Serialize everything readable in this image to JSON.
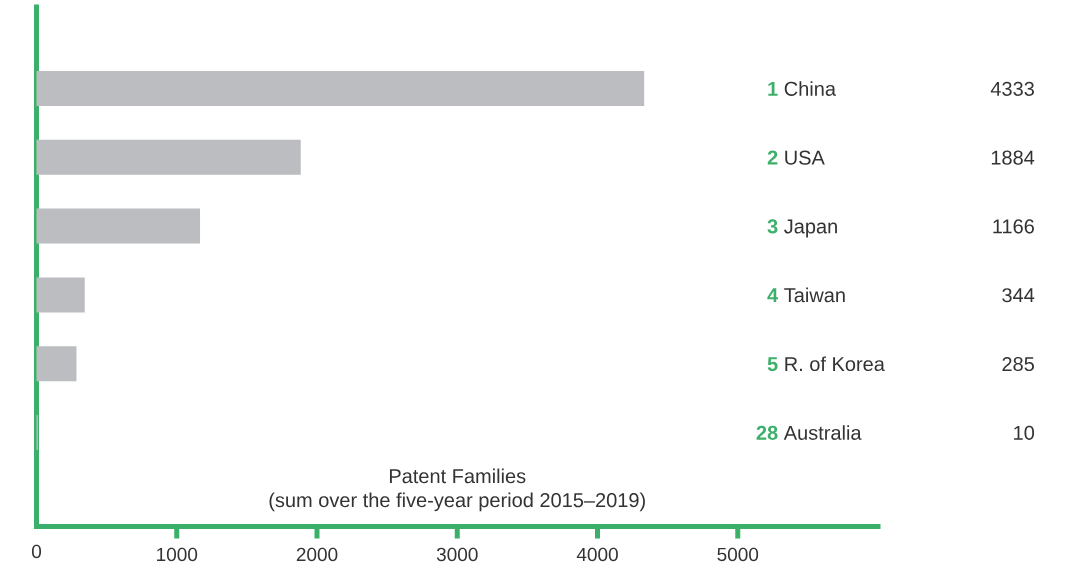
{
  "chart_data": {
    "type": "bar",
    "orientation": "horizontal",
    "categories": [
      "**1** China",
      "**2** USA",
      "**3** Japan",
      "**4** Taiwan",
      "**5** R. of Korea",
      "**28** Australia"
    ],
    "values": [
      4333,
      1884,
      1166,
      344,
      285,
      10
    ],
    "color": "#bcbdc1",
    "xlim": [
      0,
      6000
    ],
    "xticks": [
      0,
      1000,
      2000,
      3000,
      4000,
      5000
    ],
    "xlabel": "Patent Families",
    "annotations": [
      "(sum over the five-year period 2015–2019)"
    ],
    "data_labels": true
  }
}
